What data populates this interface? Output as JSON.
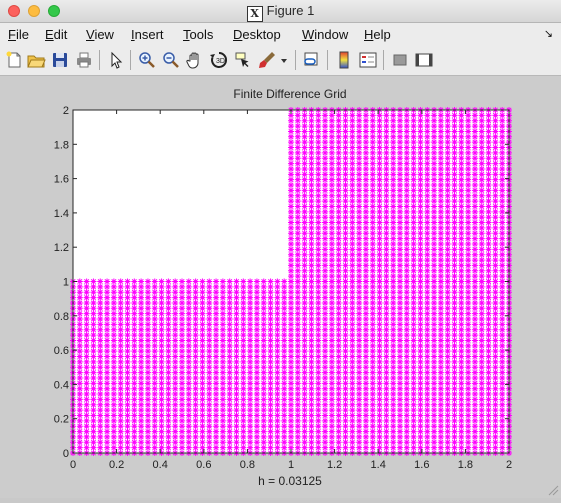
{
  "window": {
    "title": "Figure 1"
  },
  "menu": {
    "file": {
      "pre": "",
      "u": "F",
      "post": "ile"
    },
    "edit": {
      "pre": "",
      "u": "E",
      "post": "dit"
    },
    "view": {
      "pre": "",
      "u": "V",
      "post": "iew"
    },
    "insert": {
      "pre": "",
      "u": "I",
      "post": "nsert"
    },
    "tools": {
      "pre": "",
      "u": "T",
      "post": "ools"
    },
    "desktop": {
      "pre": "",
      "u": "D",
      "post": "esktop"
    },
    "window": {
      "pre": "",
      "u": "W",
      "post": "indow"
    },
    "help": {
      "pre": "",
      "u": "H",
      "post": "elp"
    },
    "overflow_arrow": "↘"
  },
  "toolbar": {
    "icons": [
      "new-figure-icon",
      "open-file-icon",
      "save-icon",
      "print-icon",
      "edit-plot-icon",
      "zoom-in-icon",
      "zoom-out-icon",
      "pan-icon",
      "rotate-3d-icon",
      "data-cursor-icon",
      "brush-icon",
      "brush-dropdown-icon",
      "link-plot-icon",
      "insert-colorbar-icon",
      "insert-legend-icon",
      "hide-plot-tools-icon",
      "show-plot-tools-icon"
    ]
  },
  "chart_data": {
    "type": "scatter",
    "title": "Finite Difference Grid",
    "xlabel": "h = 0.03125",
    "ylabel": "",
    "xlim": [
      0,
      2
    ],
    "ylim": [
      0,
      2
    ],
    "xticks": [
      "0",
      "0.2",
      "0.4",
      "0.6",
      "0.8",
      "1",
      "1.2",
      "1.4",
      "1.6",
      "1.8",
      "2"
    ],
    "yticks": [
      "0",
      "0.2",
      "0.4",
      "0.6",
      "0.8",
      "1",
      "1.2",
      "1.4",
      "1.6",
      "1.8",
      "2"
    ],
    "h": 0.03125,
    "series": [
      {
        "x_range": [
          0,
          2
        ],
        "y_range": [
          0,
          1
        ],
        "step": 0.03125,
        "color": "#ff00ff",
        "marker": "*"
      },
      {
        "x_range": [
          1,
          2
        ],
        "y_range": [
          1,
          2
        ],
        "step": 0.03125,
        "color": "#ff00ff",
        "marker": "*"
      }
    ],
    "grid": false
  }
}
